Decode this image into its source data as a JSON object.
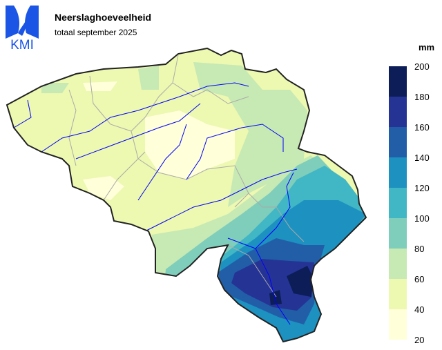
{
  "logo": {
    "text": "KMI",
    "color": "#1a55e6"
  },
  "title": "Neerslaghoeveelheid",
  "subtitle": "totaal september 2025",
  "legend": {
    "unit": "mm",
    "ticks": [
      "200",
      "180",
      "160",
      "140",
      "120",
      "100",
      "80",
      "60",
      "40",
      "20"
    ],
    "colors": [
      "#0c1d58",
      "#253494",
      "#225ea8",
      "#1d91c0",
      "#41b6c4",
      "#7fcdbb",
      "#c7e9b4",
      "#edf8b1",
      "#ffffd9"
    ]
  },
  "map": {
    "region": "Belgium",
    "border_color": "#222222",
    "river_color": "#0000ff",
    "province_color": "#aaaaaa"
  }
}
